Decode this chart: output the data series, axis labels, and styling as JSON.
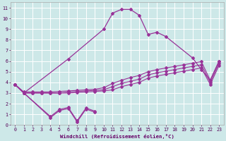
{
  "bg_color": "#cde8e8",
  "line_color": "#993399",
  "grid_color": "#ffffff",
  "xlabel": "Windchill (Refroidissement éolien,°C)",
  "xlim": [
    -0.5,
    23.5
  ],
  "ylim": [
    0,
    11.5
  ],
  "yticks": [
    0,
    1,
    2,
    3,
    4,
    5,
    6,
    7,
    8,
    9,
    10,
    11
  ],
  "xticks": [
    0,
    1,
    2,
    3,
    4,
    5,
    6,
    7,
    8,
    9,
    10,
    11,
    12,
    13,
    14,
    15,
    16,
    17,
    18,
    19,
    20,
    21,
    22,
    23
  ],
  "main_x": [
    0,
    1,
    6,
    10,
    11,
    12,
    13,
    14,
    15,
    16,
    17,
    20,
    21,
    22,
    23
  ],
  "main_y": [
    3.8,
    3.0,
    6.2,
    9.0,
    10.5,
    10.85,
    10.85,
    10.3,
    8.5,
    8.7,
    8.3,
    6.3,
    5.2,
    4.2,
    6.0
  ],
  "diag1_x": [
    0,
    1,
    2,
    3,
    4,
    5,
    6,
    7,
    8,
    9,
    10,
    11,
    12,
    13,
    14,
    15,
    16,
    17,
    18,
    19,
    20,
    21,
    22,
    23
  ],
  "diag1_y": [
    3.8,
    3.1,
    3.1,
    3.1,
    3.1,
    3.15,
    3.2,
    3.25,
    3.3,
    3.35,
    3.5,
    3.9,
    4.2,
    4.45,
    4.65,
    5.0,
    5.2,
    5.35,
    5.5,
    5.65,
    5.8,
    5.95,
    4.2,
    6.0
  ],
  "diag2_x": [
    0,
    1,
    2,
    3,
    4,
    5,
    6,
    7,
    8,
    9,
    10,
    11,
    12,
    13,
    14,
    15,
    16,
    17,
    18,
    19,
    20,
    21,
    22,
    23
  ],
  "diag2_y": [
    3.8,
    3.0,
    3.0,
    3.0,
    3.0,
    3.0,
    3.1,
    3.15,
    3.2,
    3.25,
    3.3,
    3.6,
    3.9,
    4.1,
    4.3,
    4.7,
    4.9,
    5.05,
    5.2,
    5.35,
    5.5,
    5.65,
    4.0,
    5.8
  ],
  "diag3_x": [
    0,
    1,
    2,
    3,
    4,
    5,
    6,
    7,
    8,
    9,
    10,
    11,
    12,
    13,
    14,
    15,
    16,
    17,
    18,
    19,
    20,
    21,
    22,
    23
  ],
  "diag3_y": [
    3.8,
    3.0,
    3.0,
    3.0,
    3.0,
    3.0,
    3.0,
    3.05,
    3.1,
    3.15,
    3.2,
    3.3,
    3.6,
    3.8,
    4.0,
    4.4,
    4.6,
    4.75,
    4.9,
    5.05,
    5.2,
    5.35,
    3.8,
    5.6
  ],
  "low_x": [
    0,
    1,
    4,
    5,
    6,
    7,
    8,
    9
  ],
  "low_y": [
    3.8,
    3.0,
    0.7,
    1.35,
    1.55,
    0.3,
    1.5,
    1.2
  ],
  "low2_x": [
    0,
    1,
    4,
    5,
    6,
    7,
    8,
    9
  ],
  "low2_y": [
    3.8,
    3.0,
    0.8,
    1.45,
    1.65,
    0.4,
    1.6,
    1.3
  ]
}
